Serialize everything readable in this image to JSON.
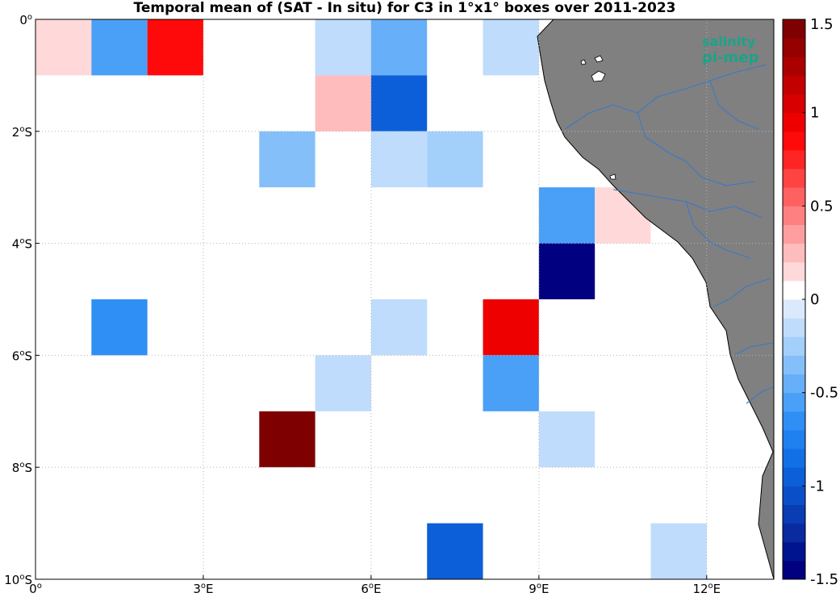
{
  "title": "Temporal mean of (SAT - In situ) for C3 in 1°x1° boxes over 2011-2023",
  "logo": {
    "line1": "salinity",
    "line2": "pi-mep",
    "color": "#1aa38a"
  },
  "map": {
    "lon_range": [
      0,
      13.2
    ],
    "lat_range": [
      -10,
      0
    ],
    "grid": true,
    "land_color": "#808080",
    "river_color": "#3a78c9"
  },
  "x_ticks": [
    {
      "value": 0,
      "label": "0°"
    },
    {
      "value": 3,
      "label": "3°E"
    },
    {
      "value": 6,
      "label": "6°E"
    },
    {
      "value": 9,
      "label": "9°E"
    },
    {
      "value": 12,
      "label": "12°E"
    }
  ],
  "y_ticks": [
    {
      "value": 0,
      "label": "0°"
    },
    {
      "value": -2,
      "label": "2°S"
    },
    {
      "value": -4,
      "label": "4°S"
    },
    {
      "value": -6,
      "label": "6°S"
    },
    {
      "value": -8,
      "label": "8°S"
    },
    {
      "value": -10,
      "label": "10°S"
    }
  ],
  "colorbar": {
    "min": -1.5,
    "max": 1.5,
    "ticks": [
      {
        "value": 1.5,
        "label": "1.5"
      },
      {
        "value": 1,
        "label": "1"
      },
      {
        "value": 0.5,
        "label": "0.5"
      },
      {
        "value": 0,
        "label": "0"
      },
      {
        "value": -0.5,
        "label": "-0.5"
      },
      {
        "value": -1,
        "label": "-1"
      },
      {
        "value": -1.5,
        "label": "-1.5"
      }
    ],
    "colors": [
      "#000080",
      "#001490",
      "#0a2aa0",
      "#0a3cb4",
      "#0a4fc8",
      "#0c5fd8",
      "#1270e6",
      "#1f80f0",
      "#2f8ff5",
      "#4a9ff7",
      "#67aff8",
      "#85bffa",
      "#a3cffb",
      "#bfdcfc",
      "#dbe9fd",
      "#ffffff",
      "#ffd9d9",
      "#ffbcbc",
      "#ff9e9e",
      "#ff8080",
      "#ff6161",
      "#ff4343",
      "#ff2525",
      "#ff0a0a",
      "#ee0000",
      "#d80000",
      "#c20000",
      "#ab0000",
      "#950000",
      "#7f0000"
    ]
  },
  "chart_data": {
    "type": "heatmap",
    "title": "Temporal mean of (SAT - In situ) for C3 in 1°x1° boxes over 2011-2023",
    "xlabel": "",
    "ylabel": "",
    "xlim": [
      0,
      13.2
    ],
    "ylim": [
      -10,
      0
    ],
    "clim": [
      -1.5,
      1.5
    ],
    "cells": [
      {
        "lon": 0,
        "lat": 0,
        "value": 0.15
      },
      {
        "lon": 1,
        "lat": 0,
        "value": -0.6
      },
      {
        "lon": 2,
        "lat": 0,
        "value": 0.85
      },
      {
        "lon": 5,
        "lat": 0,
        "value": -0.15
      },
      {
        "lon": 6,
        "lat": 0,
        "value": -0.45
      },
      {
        "lon": 8,
        "lat": 0,
        "value": -0.1
      },
      {
        "lon": 5,
        "lat": -1,
        "value": 0.25
      },
      {
        "lon": 6,
        "lat": -1,
        "value": -0.9
      },
      {
        "lon": 4,
        "lat": -2,
        "value": -0.35
      },
      {
        "lon": 6,
        "lat": -2,
        "value": -0.15
      },
      {
        "lon": 7,
        "lat": -2,
        "value": -0.25
      },
      {
        "lon": 9,
        "lat": -3,
        "value": -0.6
      },
      {
        "lon": 10,
        "lat": -3,
        "value": 0.15
      },
      {
        "lon": 9,
        "lat": -4,
        "value": -1.5
      },
      {
        "lon": 1,
        "lat": -5,
        "value": -0.7
      },
      {
        "lon": 6,
        "lat": -5,
        "value": -0.15
      },
      {
        "lon": 8,
        "lat": -5,
        "value": 0.95
      },
      {
        "lon": 5,
        "lat": -6,
        "value": -0.15
      },
      {
        "lon": 8,
        "lat": -6,
        "value": -0.55
      },
      {
        "lon": 4,
        "lat": -7,
        "value": 1.5
      },
      {
        "lon": 9,
        "lat": -7,
        "value": -0.15
      },
      {
        "lon": 7,
        "lat": -9,
        "value": -0.95
      },
      {
        "lon": 11,
        "lat": -9,
        "value": -0.15
      }
    ]
  }
}
